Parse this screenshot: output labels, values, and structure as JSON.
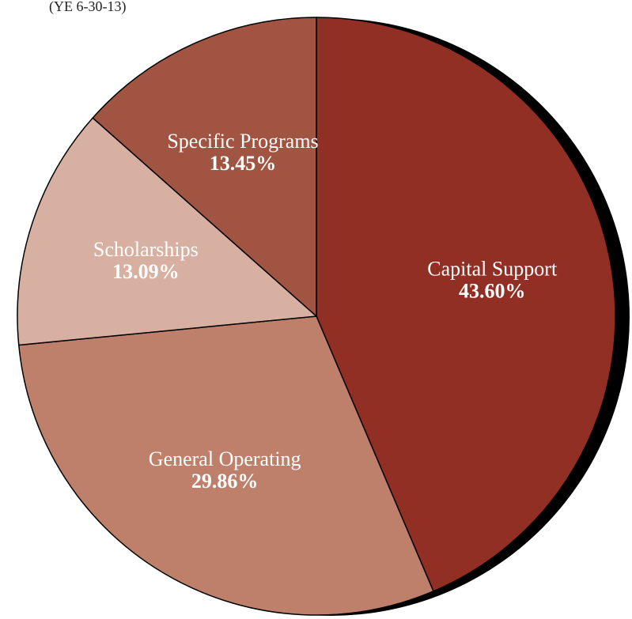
{
  "chart_data": {
    "type": "pie",
    "subtitle": "(YE 6-30-13)",
    "categories": [
      "Capital Support",
      "General Operating",
      "Scholarships",
      "Specific Programs"
    ],
    "values": [
      43.6,
      29.86,
      13.09,
      13.45
    ],
    "value_labels": [
      "43.60%",
      "29.86%",
      "13.09%",
      "13.45%"
    ],
    "colors": [
      "#922f25",
      "#bf806b",
      "#d8b0a1",
      "#a05441"
    ]
  }
}
